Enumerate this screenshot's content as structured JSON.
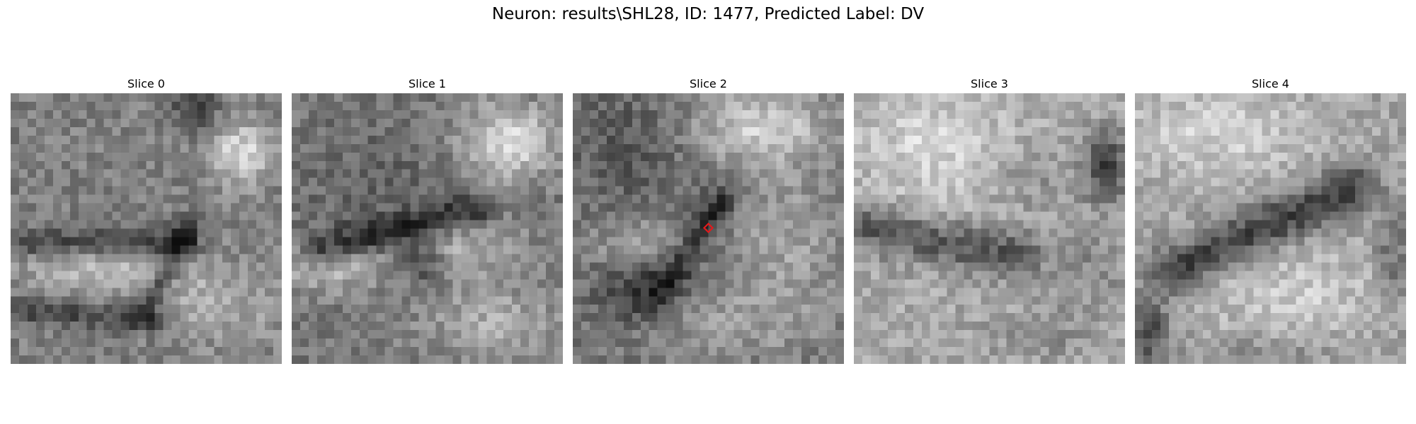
{
  "figure": {
    "title": "Neuron: results\\SHL28, ID: 1477, Predicted Label: DV",
    "colormap": "gray",
    "marker": {
      "shape": "diamond",
      "color": "#e31a1c",
      "slice_index": 2
    }
  },
  "slices": [
    {
      "title": "Slice 0"
    },
    {
      "title": "Slice 1"
    },
    {
      "title": "Slice 2"
    },
    {
      "title": "Slice 3"
    },
    {
      "title": "Slice 4"
    }
  ]
}
